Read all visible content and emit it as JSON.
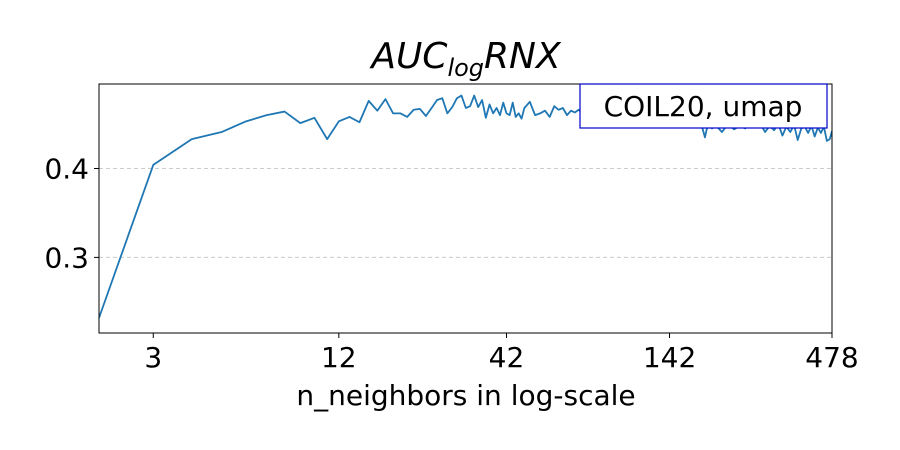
{
  "chart_data": {
    "type": "line",
    "title_main": "AUC",
    "title_sub": "log",
    "title_rest": "RNX",
    "xlabel": "n_neighbors in log-scale",
    "ylabel": "",
    "x_scale": "log",
    "xlim": [
      2,
      478
    ],
    "ylim": [
      0.215,
      0.495
    ],
    "x_ticks": [
      3,
      12,
      42,
      142,
      478
    ],
    "x_tick_labels": [
      "3",
      "12",
      "42",
      "142",
      "478"
    ],
    "y_ticks": [
      0.3,
      0.4
    ],
    "y_tick_labels": [
      "0.3",
      "0.4"
    ],
    "grid": "y-dashed",
    "legend": "COIL20, umap",
    "legend_placement": "top-right",
    "series_color": "#1f77b4",
    "series": [
      {
        "x": [
          2,
          3,
          4,
          5,
          6,
          7,
          8,
          9,
          10,
          11,
          12,
          13,
          14,
          15,
          16,
          17,
          18,
          19,
          20,
          21,
          22,
          23,
          24,
          25,
          26,
          27,
          28,
          29,
          30,
          31,
          32,
          33,
          34,
          35,
          36,
          37,
          38,
          39,
          40,
          41,
          42,
          43,
          44,
          45,
          46,
          47,
          48,
          50,
          52,
          54,
          56,
          58,
          60,
          62,
          64,
          66,
          68,
          70,
          72,
          74,
          76,
          78,
          80,
          85,
          90,
          95,
          100,
          105,
          110,
          115,
          120,
          125,
          130,
          135,
          140,
          145,
          150,
          155,
          160,
          165,
          170,
          175,
          180,
          185,
          190,
          195,
          200,
          210,
          220,
          230,
          240,
          250,
          260,
          270,
          280,
          290,
          300,
          310,
          320,
          330,
          340,
          350,
          360,
          370,
          380,
          390,
          400,
          410,
          420,
          430,
          440,
          450,
          460,
          470,
          478
        ],
        "values": [
          0.232,
          0.404,
          0.433,
          0.441,
          0.453,
          0.46,
          0.464,
          0.451,
          0.457,
          0.433,
          0.453,
          0.458,
          0.452,
          0.476,
          0.465,
          0.478,
          0.462,
          0.462,
          0.458,
          0.466,
          0.467,
          0.459,
          0.468,
          0.477,
          0.479,
          0.462,
          0.469,
          0.479,
          0.482,
          0.468,
          0.47,
          0.482,
          0.469,
          0.477,
          0.457,
          0.472,
          0.462,
          0.468,
          0.46,
          0.474,
          0.462,
          0.46,
          0.474,
          0.458,
          0.462,
          0.456,
          0.468,
          0.475,
          0.46,
          0.462,
          0.465,
          0.458,
          0.47,
          0.466,
          0.468,
          0.46,
          0.465,
          0.463,
          0.466,
          0.462,
          0.46,
          0.466,
          0.463,
          0.466,
          0.462,
          0.468,
          0.464,
          0.458,
          0.462,
          0.465,
          0.46,
          0.466,
          0.462,
          0.458,
          0.465,
          0.452,
          0.46,
          0.462,
          0.448,
          0.456,
          0.452,
          0.447,
          0.45,
          0.435,
          0.453,
          0.445,
          0.449,
          0.441,
          0.45,
          0.444,
          0.448,
          0.445,
          0.453,
          0.446,
          0.45,
          0.441,
          0.448,
          0.443,
          0.45,
          0.437,
          0.447,
          0.441,
          0.449,
          0.432,
          0.445,
          0.447,
          0.44,
          0.448,
          0.436,
          0.446,
          0.44,
          0.447,
          0.431,
          0.433,
          0.442
        ]
      }
    ]
  }
}
